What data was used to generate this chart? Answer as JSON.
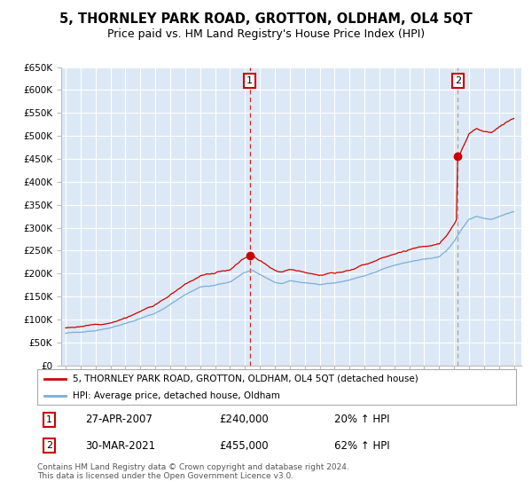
{
  "title": "5, THORNLEY PARK ROAD, GROTTON, OLDHAM, OL4 5QT",
  "subtitle": "Price paid vs. HM Land Registry's House Price Index (HPI)",
  "title_fontsize": 10.5,
  "subtitle_fontsize": 9,
  "bg_color": "#dce8f5",
  "grid_color": "#ffffff",
  "ylim": [
    0,
    650000
  ],
  "yticks": [
    0,
    50000,
    100000,
    150000,
    200000,
    250000,
    300000,
    350000,
    400000,
    450000,
    500000,
    550000,
    600000,
    650000
  ],
  "sale1_year": 2007.33,
  "sale1_value": 240000,
  "sale1_label": "27-APR-2007",
  "sale1_amount": "£240,000",
  "sale1_pct": "20% ↑ HPI",
  "sale2_year": 2021.25,
  "sale2_value": 455000,
  "sale2_label": "30-MAR-2021",
  "sale2_amount": "£455,000",
  "sale2_pct": "62% ↑ HPI",
  "legend_line1": "5, THORNLEY PARK ROAD, GROTTON, OLDHAM, OL4 5QT (detached house)",
  "legend_line2": "HPI: Average price, detached house, Oldham",
  "footnote": "Contains HM Land Registry data © Crown copyright and database right 2024.\nThis data is licensed under the Open Government Licence v3.0.",
  "red_color": "#cc0000",
  "blue_color": "#7aaed6",
  "vline1_color": "#cc0000",
  "vline2_color": "#999999",
  "xstart": 1995,
  "xend": 2025
}
